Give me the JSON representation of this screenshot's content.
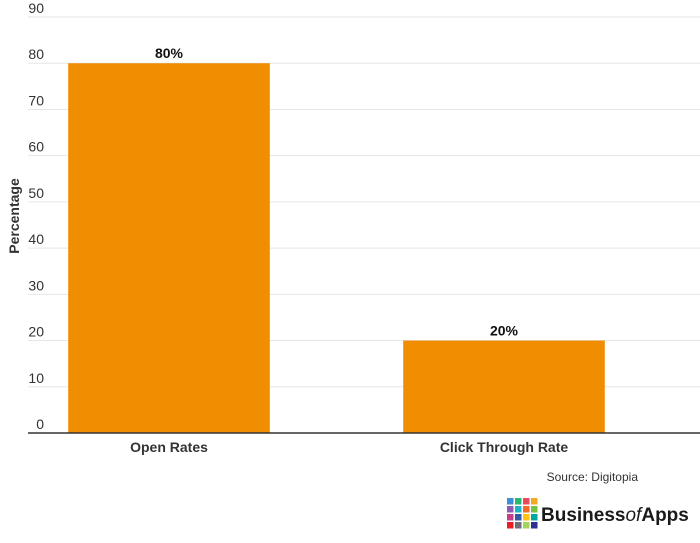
{
  "chart_data": {
    "type": "bar",
    "categories": [
      "Open Rates",
      "Click Through Rate"
    ],
    "values": [
      80,
      20
    ],
    "data_labels": [
      "80%",
      "20%"
    ],
    "title": "",
    "xlabel": "",
    "ylabel": "Percentage",
    "ylim": [
      0,
      90
    ],
    "yticks": [
      0,
      10,
      20,
      30,
      40,
      50,
      60,
      70,
      80,
      90
    ],
    "grid": true,
    "legend": "none",
    "bar_color": "#F18D00"
  },
  "footer": {
    "source": "Source: Digitopia",
    "brand": {
      "part1": "Business",
      "part2": "of",
      "part3": "Apps",
      "logo_colors": [
        "#3A8FD6",
        "#2BB673",
        "#E94B5B",
        "#F7A823",
        "#8C5BB8",
        "#1DB4C6",
        "#F06A2A",
        "#7AC143",
        "#C73D8E",
        "#3457A6",
        "#FFC20E",
        "#00A79D",
        "#EC1C24",
        "#6D6E71",
        "#A3D55D",
        "#2E3192"
      ]
    }
  }
}
